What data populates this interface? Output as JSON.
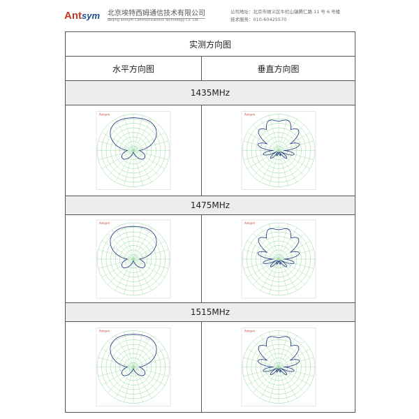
{
  "header": {
    "logo_text": "Antsym",
    "company_cn": "北京埃特西姆通信技术有限公司",
    "company_en": "Beijing antsym Communications Technology Co. Ltd.",
    "address": "公司地址：北京市顺义区牛栏山镇腾仁路 11 号 6 号楼",
    "service": "技术服务：010-60425570"
  },
  "table": {
    "title": "实测方向图",
    "col_horizontal": "水平方向图",
    "col_vertical": "垂直方向图",
    "rows": [
      {
        "freq": "1435MHz"
      },
      {
        "freq": "1475MHz"
      },
      {
        "freq": "1515MHz"
      }
    ]
  },
  "colors": {
    "pattern": "#1d2f7a",
    "grid": "#8fd49a"
  }
}
